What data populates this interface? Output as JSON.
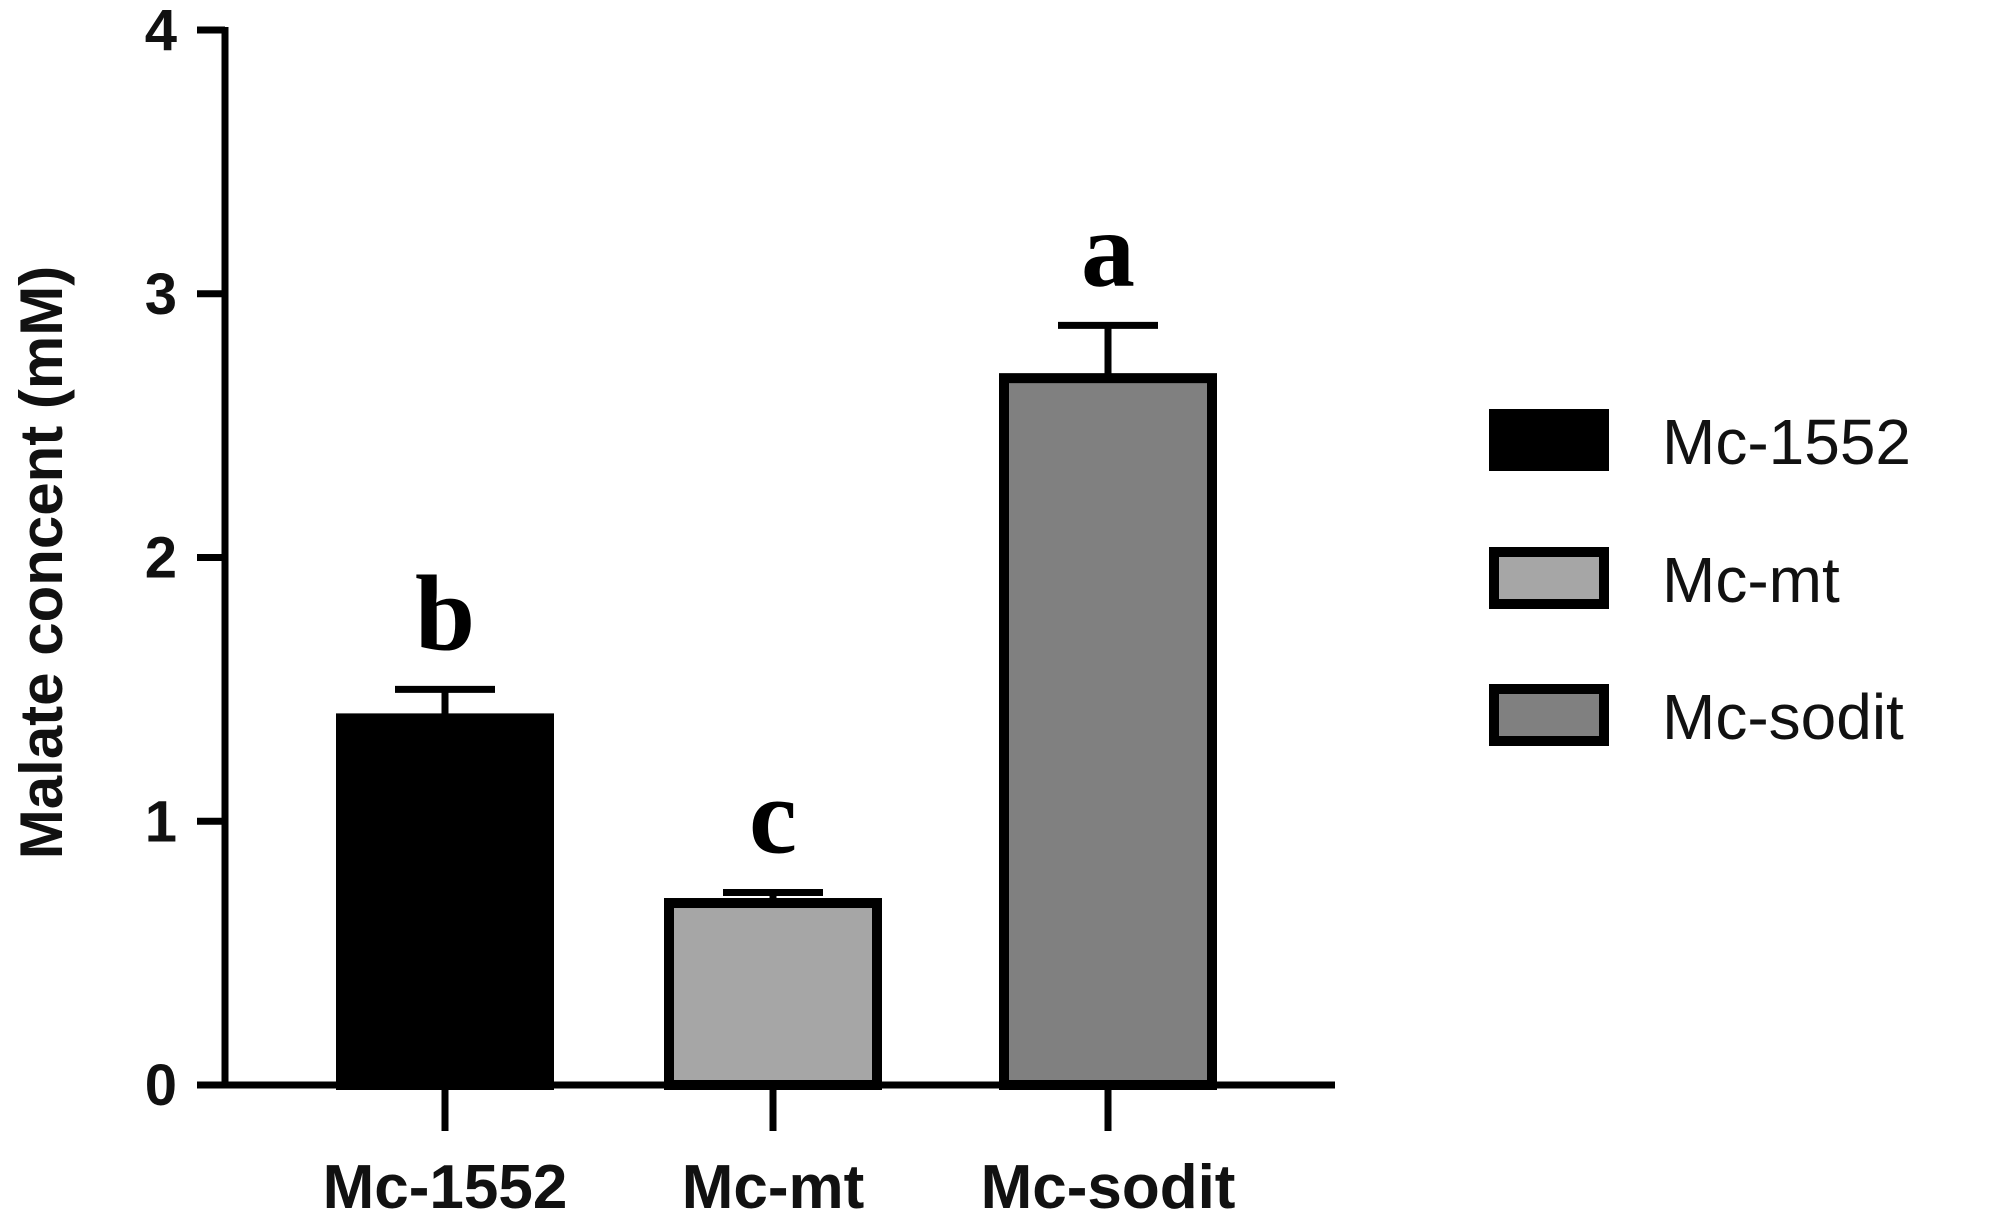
{
  "chart_data": {
    "type": "bar",
    "categories": [
      "Mc-1552",
      "Mc-mt",
      "Mc-sodit"
    ],
    "series": [
      {
        "values": [
          1.39,
          0.69,
          2.68
        ],
        "errors": [
          0.11,
          0.04,
          0.2
        ],
        "colors": [
          "#000000",
          "#a6a6a6",
          "#808080"
        ]
      }
    ],
    "significance_labels": [
      "b",
      "c",
      "a"
    ],
    "xlabel": "",
    "ylabel": "Malate concent (mM)",
    "ylim": [
      0,
      4
    ],
    "yticks": [
      "0",
      "1",
      "2",
      "3",
      "4"
    ],
    "grid": false,
    "legend": {
      "placement": "right",
      "entries": [
        {
          "label": "Mc-1552",
          "color": "#000000"
        },
        {
          "label": "Mc-mt",
          "color": "#a6a6a6"
        },
        {
          "label": "Mc-sodit",
          "color": "#808080"
        }
      ]
    }
  }
}
